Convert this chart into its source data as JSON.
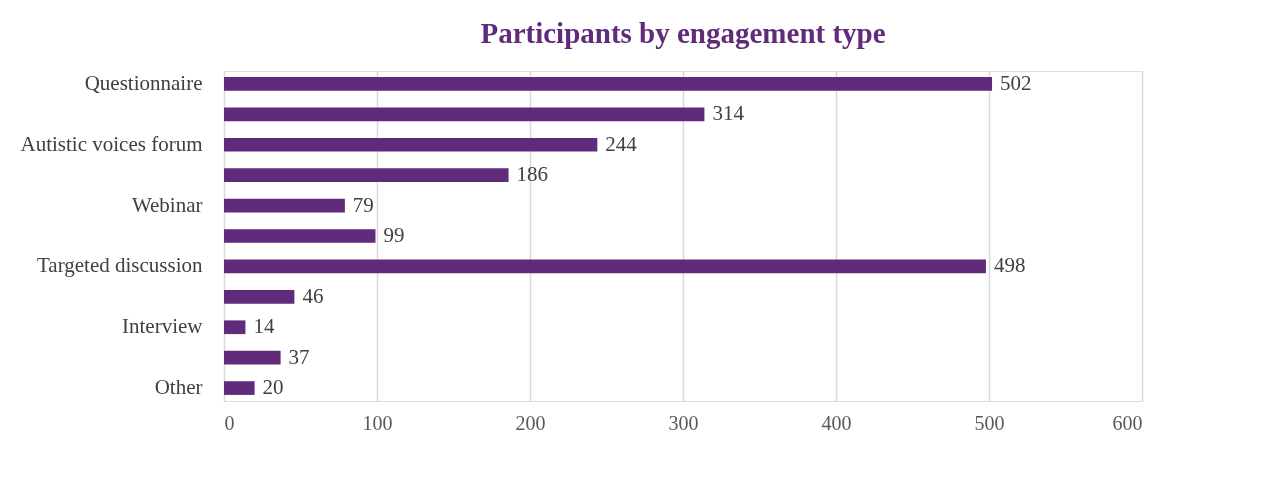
{
  "chart_data": {
    "type": "bar",
    "orientation": "horizontal",
    "title": "Participants by engagement type",
    "categories": [
      "Questionnaire",
      null,
      "Autistic voices forum",
      null,
      "Webinar",
      null,
      "Targeted discussion",
      null,
      "Interview",
      null,
      "Other"
    ],
    "values": [
      502,
      314,
      244,
      186,
      79,
      99,
      498,
      46,
      14,
      37,
      20
    ],
    "color": "#612b7b",
    "xlim": [
      0,
      600
    ],
    "xticks": [
      0,
      100,
      200,
      300,
      400,
      500,
      600
    ],
    "grid": "x",
    "data_labels": true
  }
}
